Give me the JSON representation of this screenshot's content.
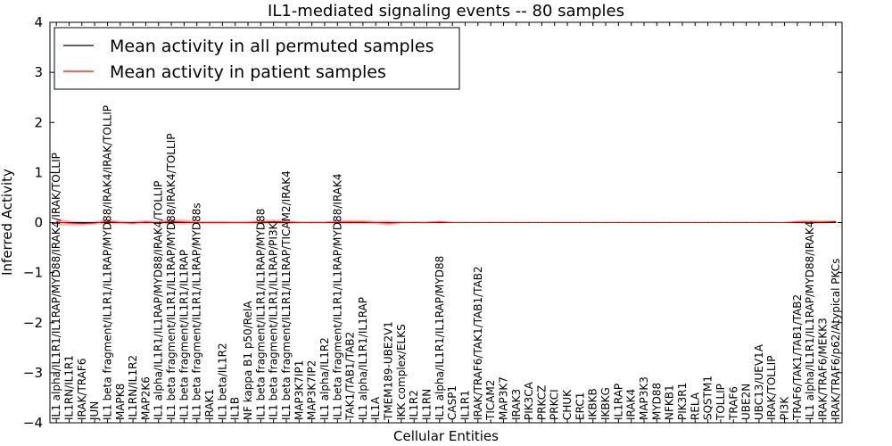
{
  "chart_data": {
    "type": "line",
    "title": "IL1-mediated signaling events -- 80 samples",
    "xlabel": "Cellular Entities",
    "ylabel": "Inferred Activity",
    "ylim": [
      -4,
      4
    ],
    "yticks": [
      "−4",
      "−3",
      "−2",
      "−1",
      "0",
      "1",
      "2",
      "3",
      "4"
    ],
    "legend_position": "top-left",
    "colors": {
      "permuted": "#000000",
      "patient": "#ff0000",
      "band": "#f4a0a0"
    },
    "categories": [
      "IL1 alpha/IL1R1/IL1RAP/MYD88/IRAK4/IRAK/TOLLIP",
      "IL1RN/IL1R1",
      "IRAK/TRAF6",
      "JUN",
      "IL1 beta fragment/IL1R1/IL1RAP/MYD88/IRAK4/IRAK/TOLLIP",
      "MAPK8",
      "IL1RN/IL1R2",
      "MAP2K6",
      "IL1 alpha/IL1R1/IL1RAP/MYD88/IRAK4/TOLLIP",
      "IL1 beta fragment/IL1R1/IL1RAP/MYD88/IRAK4/TOLLIP",
      "IL1 beta fragment/IL1R1/IL1RAP",
      "IL1 beta fragment/IL1R1/IL1RAP/MYD88s",
      "IRAK1",
      "IL1 beta/IL1R2",
      "IL1B",
      "NF kappa B1 p50/RelA",
      "IL1 beta fragment/IL1R1/IL1RAP/MYD88",
      "IL1 beta fragment/IL1R1/IL1RAP/PI3K",
      "IL1 beta fragment/IL1R1/IL1RAP/TICAM2/IRAK4",
      "MAP3K7IP1",
      "MAP3K7IP2",
      "IL1 alpha/IL1R2",
      "IL1 beta fragment/IL1R1/IL1RAP/MYD88/IRAK4",
      "TAK1/TAB1/TAB2",
      "IL1 alpha/IL1R1/IL1RAP",
      "IL1A",
      "TMEM189-UBE2V1",
      "IKK complex/ELKS",
      "IL1R2",
      "IL1RN",
      "IL1 alpha/IL1R1/IL1RAP/MYD88",
      "CASP1",
      "IL1R1",
      "IRAK/TRAF6/TAK1/TAB1/TAB2",
      "TICAM2",
      "MAP3K7",
      "IRAK3",
      "PIK3CA",
      "PRKCZ",
      "PRKCI",
      "CHUK",
      "ERC1",
      "IKBKB",
      "IKBKG",
      "IL1RAP",
      "IRAK4",
      "MAP3K3",
      "MYD88",
      "NFKB1",
      "PIK3R1",
      "RELA",
      "SQSTM1",
      "TOLLIP",
      "TRAF6",
      "UBE2N",
      "UBC13/UEV1A",
      "IRAK/TOLLIP",
      "PI3K",
      "TRAF6/TAK1/TAB1/TAB2",
      "IL1 alpha/IL1R1/IL1RAP/MYD88/IRAK4",
      "IRAK/TRAF6/MEKK3",
      "IRAK/TRAF6/p62/Atypical PKCs"
    ],
    "series": [
      {
        "name": "Mean activity in all permuted samples",
        "color": "#000000",
        "values": [
          0,
          0,
          0,
          0,
          0,
          0,
          0,
          0,
          0,
          0,
          0,
          0,
          0,
          0,
          0,
          0,
          0,
          0,
          0,
          0,
          0,
          0,
          0,
          0,
          0,
          0,
          0,
          0,
          0,
          0,
          0,
          0,
          0,
          0,
          0,
          0,
          0,
          0,
          0,
          0,
          0,
          0,
          0,
          0,
          0,
          0,
          0,
          0,
          0,
          0,
          0,
          0,
          0,
          0,
          0,
          0,
          0,
          0,
          0,
          0,
          0,
          0
        ]
      },
      {
        "name": "Mean activity in patient samples",
        "color": "#ff0000",
        "values": [
          0.01,
          -0.01,
          -0.02,
          -0.01,
          0.02,
          0.0,
          -0.01,
          0.01,
          0.0,
          0.02,
          0.01,
          0.0,
          0.0,
          0.0,
          0.0,
          0.0,
          0.01,
          0.02,
          0.01,
          0.0,
          0.0,
          0.0,
          0.01,
          0.01,
          0.01,
          0.0,
          -0.01,
          0.0,
          0.0,
          0.0,
          0.01,
          0.0,
          0.0,
          0.0,
          0.0,
          0.0,
          0.0,
          0.0,
          0.0,
          0.0,
          0.0,
          0.0,
          0.0,
          0.0,
          0.0,
          0.0,
          0.0,
          0.0,
          0.0,
          0.0,
          0.0,
          0.0,
          0.0,
          0.0,
          0.0,
          0.0,
          0.0,
          0.0,
          0.01,
          0.01,
          0.01,
          0.02
        ]
      }
    ],
    "band_halfwidth": [
      0.07,
      0.05,
      0.04,
      0.03,
      0.05,
      0.03,
      0.03,
      0.04,
      0.03,
      0.05,
      0.05,
      0.03,
      0.03,
      0.03,
      0.02,
      0.03,
      0.04,
      0.04,
      0.04,
      0.02,
      0.02,
      0.02,
      0.04,
      0.04,
      0.04,
      0.03,
      0.05,
      0.02,
      0.02,
      0.02,
      0.03,
      0.01,
      0.01,
      0.01,
      0.01,
      0.01,
      0.01,
      0.01,
      0.01,
      0.01,
      0.01,
      0.01,
      0.01,
      0.01,
      0.01,
      0.01,
      0.01,
      0.01,
      0.01,
      0.01,
      0.01,
      0.01,
      0.01,
      0.01,
      0.01,
      0.01,
      0.01,
      0.01,
      0.03,
      0.04,
      0.03,
      0.03
    ]
  }
}
